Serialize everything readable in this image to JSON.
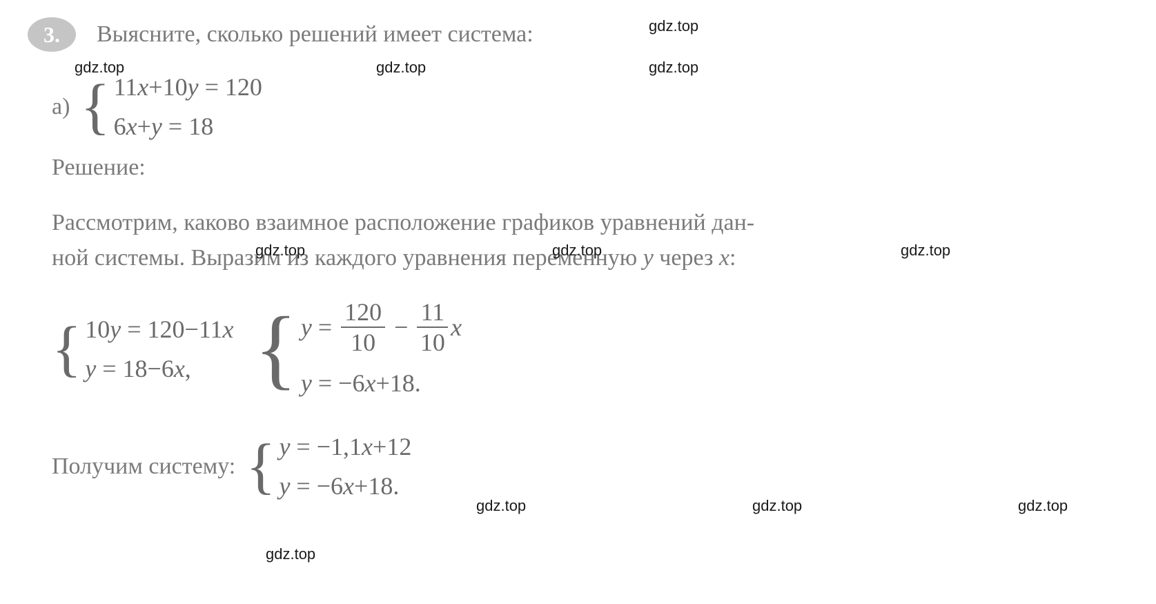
{
  "problem": {
    "number": "3.",
    "prompt": "Выясните, сколько решений имеет система:",
    "part_label": "а)",
    "equations": {
      "eq1_coef1": "11",
      "eq1_var1": "x",
      "eq1_op1": "+",
      "eq1_coef2": "10",
      "eq1_var2": "y",
      "eq1_eq": "=",
      "eq1_rhs": "120",
      "eq2_coef1": "6",
      "eq2_var1": "x",
      "eq2_op1": "+",
      "eq2_var2": "y",
      "eq2_eq": "=",
      "eq2_rhs": "18"
    },
    "solution_label": "Решение:",
    "paragraph1": "Рассмотрим, каково взаимное расположение графиков уравнений дан-",
    "paragraph2_pre": "ной системы. Выразим из каждого уравнения переменную ",
    "paragraph2_y": "y",
    "paragraph2_mid": " через ",
    "paragraph2_x": "x",
    "paragraph2_end": ":",
    "step1": {
      "left": {
        "eq1_lhs_coef": "10",
        "eq1_lhs_var": "y",
        "eq1_eq": "=",
        "eq1_rhs_const": "120",
        "eq1_rhs_op": "−",
        "eq1_rhs_coef": "11",
        "eq1_rhs_var": "x",
        "eq2_lhs": "y",
        "eq2_eq": "=",
        "eq2_rhs_const": "18",
        "eq2_rhs_op": "−",
        "eq2_rhs_coef": "6",
        "eq2_rhs_var": "x",
        "eq2_comma": ","
      },
      "right": {
        "eq1_lhs": "y",
        "eq1_eq": "=",
        "eq1_frac1_num": "120",
        "eq1_frac1_den": "10",
        "eq1_op": "−",
        "eq1_frac2_num": "11",
        "eq1_frac2_den": "10",
        "eq1_var": "x",
        "eq2_lhs": "y",
        "eq2_eq": "=",
        "eq2_op": "−",
        "eq2_coef": "6",
        "eq2_var": "x",
        "eq2_op2": "+",
        "eq2_const": "18",
        "eq2_end": "."
      }
    },
    "final": {
      "text": "Получим систему:",
      "eq1_lhs": "y",
      "eq1_eq": "=",
      "eq1_op": "−",
      "eq1_coef": "1,1",
      "eq1_var": "x",
      "eq1_op2": "+",
      "eq1_const": "12",
      "eq2_lhs": "y",
      "eq2_eq": "=",
      "eq2_op": "−",
      "eq2_coef": "6",
      "eq2_var": "x",
      "eq2_op2": "+",
      "eq2_const": "18",
      "eq2_end": "."
    }
  },
  "watermark": {
    "text": "gdz.top"
  },
  "styles": {
    "text_color": "#7a7a7a",
    "math_color": "#6a6a6a",
    "badge_bg": "#c5c5c5",
    "badge_fg": "#ffffff",
    "watermark_color": "#1a1a1a",
    "background": "#ffffff",
    "font_size_body": 34,
    "font_size_math": 36,
    "font_family": "Georgia"
  }
}
